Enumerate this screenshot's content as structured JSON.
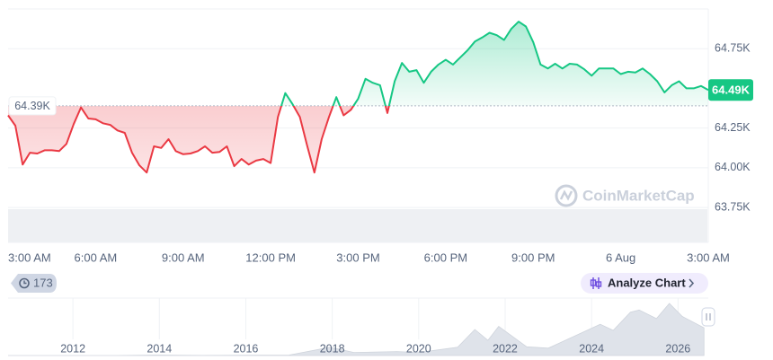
{
  "chart_data": [
    {
      "type": "line",
      "x": [
        0,
        0.25,
        0.5,
        0.75,
        1,
        1.25,
        1.5,
        1.75,
        2,
        2.25,
        2.5,
        2.75,
        3,
        3.25,
        3.5,
        3.75,
        4,
        4.25,
        4.5,
        4.75,
        5,
        5.25,
        5.5,
        5.75,
        6,
        6.25,
        6.5,
        6.75,
        7,
        7.25,
        7.5,
        7.75,
        8,
        8.25,
        8.5,
        8.75,
        9,
        9.25,
        9.5,
        9.75,
        10,
        10.25,
        10.5,
        10.75,
        11,
        11.25,
        11.5,
        11.75,
        12,
        12.25,
        12.5,
        12.75,
        13,
        13.25,
        13.5,
        13.75,
        14,
        14.25,
        14.5,
        14.75,
        15,
        15.25,
        15.5,
        15.75,
        16,
        16.25,
        16.5,
        16.75,
        17,
        17.25,
        17.5,
        17.75,
        18,
        18.25,
        18.5,
        18.75,
        19,
        19.25,
        19.5,
        19.75,
        20,
        20.25,
        20.5,
        20.75,
        21,
        21.25,
        21.5,
        21.75,
        22,
        22.25,
        22.5,
        22.75,
        23,
        23.25,
        23.5,
        23.75,
        24
      ],
      "values": [
        64330,
        64265,
        64020,
        64095,
        64090,
        64110,
        64110,
        64105,
        64150,
        64275,
        64380,
        64310,
        64305,
        64280,
        64270,
        64235,
        64220,
        64095,
        64015,
        63970,
        64135,
        64125,
        64180,
        64105,
        64085,
        64090,
        64105,
        64135,
        64095,
        64100,
        64135,
        64010,
        64055,
        64020,
        64045,
        64055,
        64030,
        64320,
        64470,
        64400,
        64320,
        64140,
        63970,
        64180,
        64320,
        64445,
        64330,
        64365,
        64435,
        64560,
        64535,
        64520,
        64345,
        64545,
        64660,
        64605,
        64615,
        64535,
        64605,
        64650,
        64680,
        64650,
        64695,
        64740,
        64795,
        64820,
        64850,
        64835,
        64805,
        64875,
        64920,
        64890,
        64790,
        64650,
        64625,
        64655,
        64625,
        64655,
        64650,
        64620,
        64580,
        64625,
        64625,
        64625,
        64590,
        64605,
        64600,
        64625,
        64590,
        64545,
        64475,
        64520,
        64545,
        64500,
        64500,
        64515,
        64490
      ],
      "xlim": [
        0,
        24
      ],
      "xticks": [
        {
          "value": 0,
          "label": "3:00 AM"
        },
        {
          "value": 3,
          "label": "6:00 AM"
        },
        {
          "value": 6,
          "label": "9:00 AM"
        },
        {
          "value": 9,
          "label": "12:00 PM"
        },
        {
          "value": 12,
          "label": "3:00 PM"
        },
        {
          "value": 15,
          "label": "6:00 PM"
        },
        {
          "value": 18,
          "label": "9:00 PM"
        },
        {
          "value": 21,
          "label": "6 Aug"
        },
        {
          "value": 24,
          "label": "3:00 AM"
        }
      ],
      "ylim": [
        63530,
        65000
      ],
      "yticks": [
        {
          "value": 63750,
          "label": "63.75K"
        },
        {
          "value": 64000,
          "label": "64.00K"
        },
        {
          "value": 64250,
          "label": "64.25K"
        },
        {
          "value": 64750,
          "label": "64.75K"
        }
      ],
      "baseline": {
        "value": 64390,
        "label": "64.39K"
      },
      "current_price": {
        "value": 64490,
        "label": "64.49K"
      },
      "up_color": "#16c784",
      "down_color": "#ea3943",
      "grid": true
    },
    {
      "type": "area",
      "x": [
        2010.5,
        2013,
        2013.9,
        2015,
        2017,
        2017.95,
        2018.5,
        2019.5,
        2020,
        2020.9,
        2021.3,
        2021.6,
        2021.85,
        2022.5,
        2023,
        2024.2,
        2024.5,
        2024.9,
        2025.1,
        2025.5,
        2025.8,
        2026.1,
        2026.6
      ],
      "values": [
        0,
        100,
        1000,
        300,
        1000,
        19000,
        7000,
        9000,
        7000,
        19000,
        60000,
        35000,
        67000,
        20000,
        17000,
        72000,
        58000,
        100000,
        105000,
        85000,
        120000,
        90000,
        64000
      ],
      "xlim": [
        2010.5,
        2026.7
      ],
      "xticks": [
        2012,
        2014,
        2016,
        2018,
        2020,
        2022,
        2024,
        2026
      ],
      "color": "#dfe3ea",
      "grid": true
    }
  ],
  "ui": {
    "badge": "173",
    "analyze_button": "Analyze Chart",
    "watermark": "CoinMarketCap"
  }
}
